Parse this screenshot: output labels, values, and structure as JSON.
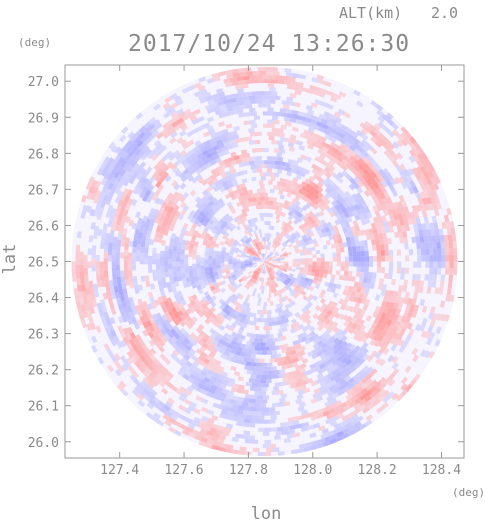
{
  "header": {
    "altitude_label": "ALT(km)",
    "altitude_value": "2.0",
    "timestamp": "2017/10/24 13:26:30"
  },
  "chart_data": {
    "type": "heatmap",
    "title": "2017/10/24 13:26:30",
    "xlabel": "lon",
    "ylabel": "lat",
    "x_unit": "(deg)",
    "y_unit": "(deg)",
    "xlim": [
      127.23,
      128.47
    ],
    "ylim": [
      25.955,
      27.045
    ],
    "x_ticks": [
      "127.4",
      "127.6",
      "127.8",
      "128.0",
      "128.2",
      "128.4"
    ],
    "x_tick_values": [
      127.4,
      127.6,
      127.8,
      128.0,
      128.2,
      128.4
    ],
    "y_ticks": [
      "27.0",
      "26.9",
      "26.8",
      "26.7",
      "26.6",
      "26.5",
      "26.4",
      "26.3",
      "26.2",
      "26.1",
      "26.0"
    ],
    "y_tick_values": [
      27.0,
      26.9,
      26.8,
      26.7,
      26.6,
      26.5,
      26.4,
      26.3,
      26.2,
      26.1,
      26.0
    ],
    "radar_center": {
      "lon": 127.85,
      "lat": 26.5
    },
    "radar_range_deg_lon": 0.6,
    "radar_range_deg_lat": 0.54,
    "grid": false,
    "colors": {
      "positive": "#ff9a9a",
      "negative": "#a9a9ff",
      "neutral": "#f6f4ff",
      "axis": "#9a9a9a",
      "text": "#8a8a8a"
    }
  }
}
